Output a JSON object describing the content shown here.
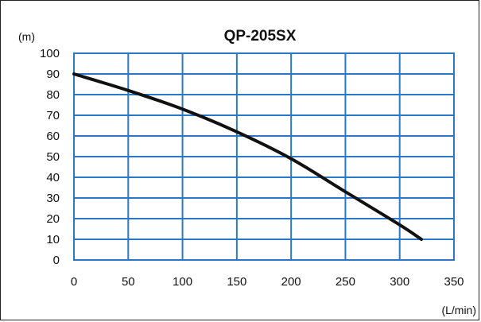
{
  "chart_data": {
    "type": "line",
    "title": "QP-205SX",
    "xlabel": "(L/min)",
    "ylabel": "(m)",
    "xlim": [
      0,
      350
    ],
    "ylim": [
      0,
      100
    ],
    "x_ticks": [
      0,
      50,
      100,
      150,
      200,
      250,
      300,
      350
    ],
    "y_ticks": [
      0,
      10,
      20,
      30,
      40,
      50,
      60,
      70,
      80,
      90,
      100
    ],
    "grid": true,
    "legend": "none",
    "colors": {
      "grid": "#2a78c8",
      "plot_border": "#2a78c8",
      "curve": "#111111",
      "text": "#111111"
    },
    "series": [
      {
        "x": [
          0,
          50,
          100,
          150,
          200,
          250,
          300,
          320
        ],
        "y": [
          90,
          82,
          73,
          62,
          49,
          33,
          17,
          10
        ]
      }
    ]
  }
}
